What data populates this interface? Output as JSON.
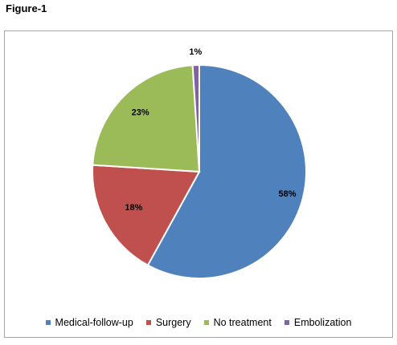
{
  "figure": {
    "title": "Figure-1"
  },
  "chart_data": {
    "type": "pie",
    "title": "",
    "categories": [
      "Medical-follow-up",
      "Surgery",
      "No treatment",
      "Embolization"
    ],
    "values": [
      58,
      18,
      23,
      1
    ],
    "labels": [
      "58%",
      "18%",
      "23%",
      "1%"
    ],
    "colors": [
      "#4f81bd",
      "#c0504d",
      "#9bbb59",
      "#8064a2"
    ],
    "legend_position": "bottom",
    "start_angle": "12 o'clock, clockwise"
  }
}
